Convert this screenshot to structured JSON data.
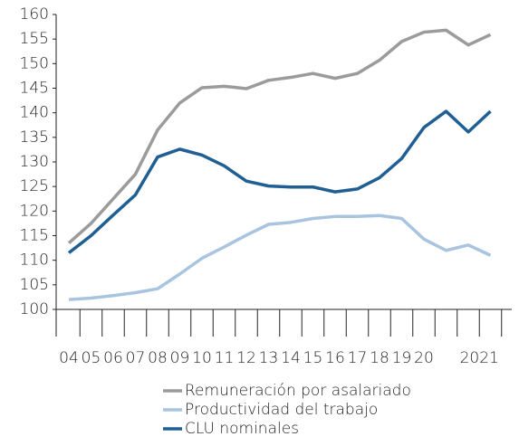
{
  "chart_data": {
    "type": "line",
    "categories": [
      "04",
      "05",
      "06",
      "07",
      "08",
      "09",
      "10",
      "11",
      "12",
      "13",
      "14",
      "15",
      "16",
      "17",
      "18",
      "19",
      "20",
      null,
      "2021",
      null
    ],
    "series": [
      {
        "name": "Remuneración por asalariado",
        "color": "#9b9b9b",
        "values": [
          113.5,
          117.5,
          122.5,
          127.5,
          136.5,
          142,
          145.1,
          145.4,
          144.9,
          146.6,
          147.2,
          148,
          147,
          148,
          150.7,
          154.5,
          156.4,
          156.8,
          153.8,
          155.9
        ]
      },
      {
        "name": "Productividad del trabajo",
        "color": "#a9c4e0",
        "values": [
          102,
          102.3,
          102.8,
          103.4,
          104.2,
          107.2,
          110.4,
          112.7,
          115.1,
          117.3,
          117.7,
          118.5,
          118.9,
          118.9,
          119.1,
          118.5,
          114.3,
          112,
          113.1,
          111
        ]
      },
      {
        "name": "CLU nominales",
        "color": "#1f5f94",
        "values": [
          111.5,
          115,
          119.2,
          123.3,
          131,
          132.6,
          131.4,
          129.2,
          126.1,
          125.1,
          124.9,
          124.9,
          123.9,
          124.5,
          126.8,
          130.7,
          137,
          140.3,
          136.1,
          140.3
        ]
      }
    ],
    "ylim": [
      100,
      160
    ],
    "yticks": [
      100,
      105,
      110,
      115,
      120,
      125,
      130,
      135,
      140,
      145,
      150,
      155,
      160
    ],
    "legend": "bottom"
  }
}
